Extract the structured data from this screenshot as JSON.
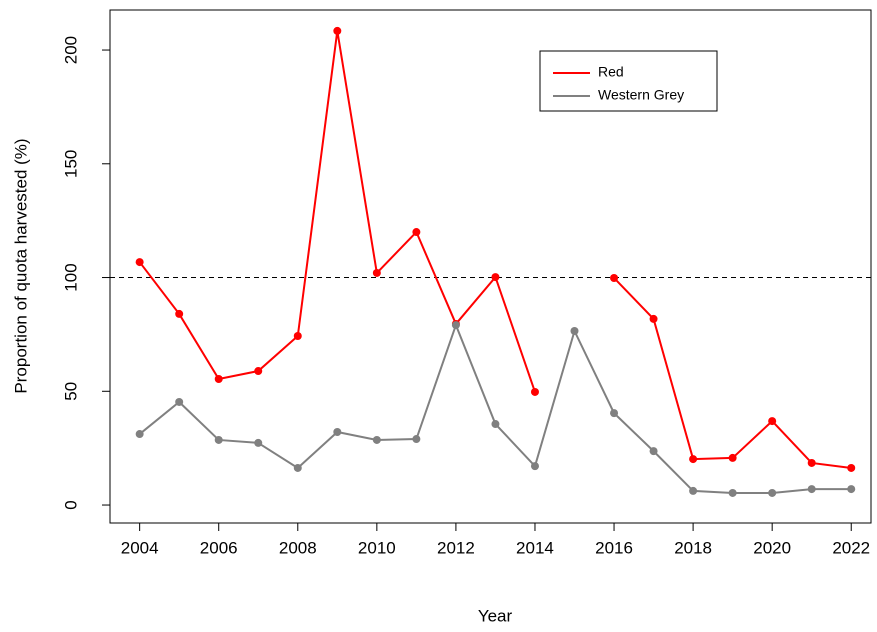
{
  "chart_data": {
    "type": "line",
    "x_label": "Year",
    "y_label": "Proportion of quota harvested (%)",
    "x": [
      2004,
      2005,
      2006,
      2007,
      2008,
      2009,
      2010,
      2011,
      2012,
      2013,
      2014,
      2015,
      2016,
      2017,
      2018,
      2019,
      2020,
      2021,
      2022
    ],
    "series": [
      {
        "name": "Red",
        "color": "#ff0000",
        "values": [
          106.8,
          84,
          55.4,
          58.9,
          74.3,
          208.4,
          102,
          120,
          79.6,
          100.2,
          49.7,
          null,
          99.8,
          81.8,
          20.2,
          20.7,
          36.9,
          18.5,
          16.3
        ]
      },
      {
        "name": "Western Grey",
        "color": "#808080",
        "values": [
          31.2,
          45.3,
          28.6,
          27.3,
          16.3,
          32.1,
          28.6,
          29,
          79.1,
          35.6,
          17.1,
          76.5,
          40.4,
          23.7,
          6.2,
          5.3,
          5.3,
          7,
          7
        ]
      }
    ],
    "reference_line": 100,
    "xlim": [
      2003.25,
      2022.5
    ],
    "xticks": [
      2004,
      2006,
      2008,
      2010,
      2012,
      2014,
      2016,
      2018,
      2020,
      2022
    ],
    "ylim": [
      -7.9,
      217.6
    ],
    "yticks": [
      0,
      50,
      100,
      150,
      200
    ],
    "legend": "top-right"
  }
}
